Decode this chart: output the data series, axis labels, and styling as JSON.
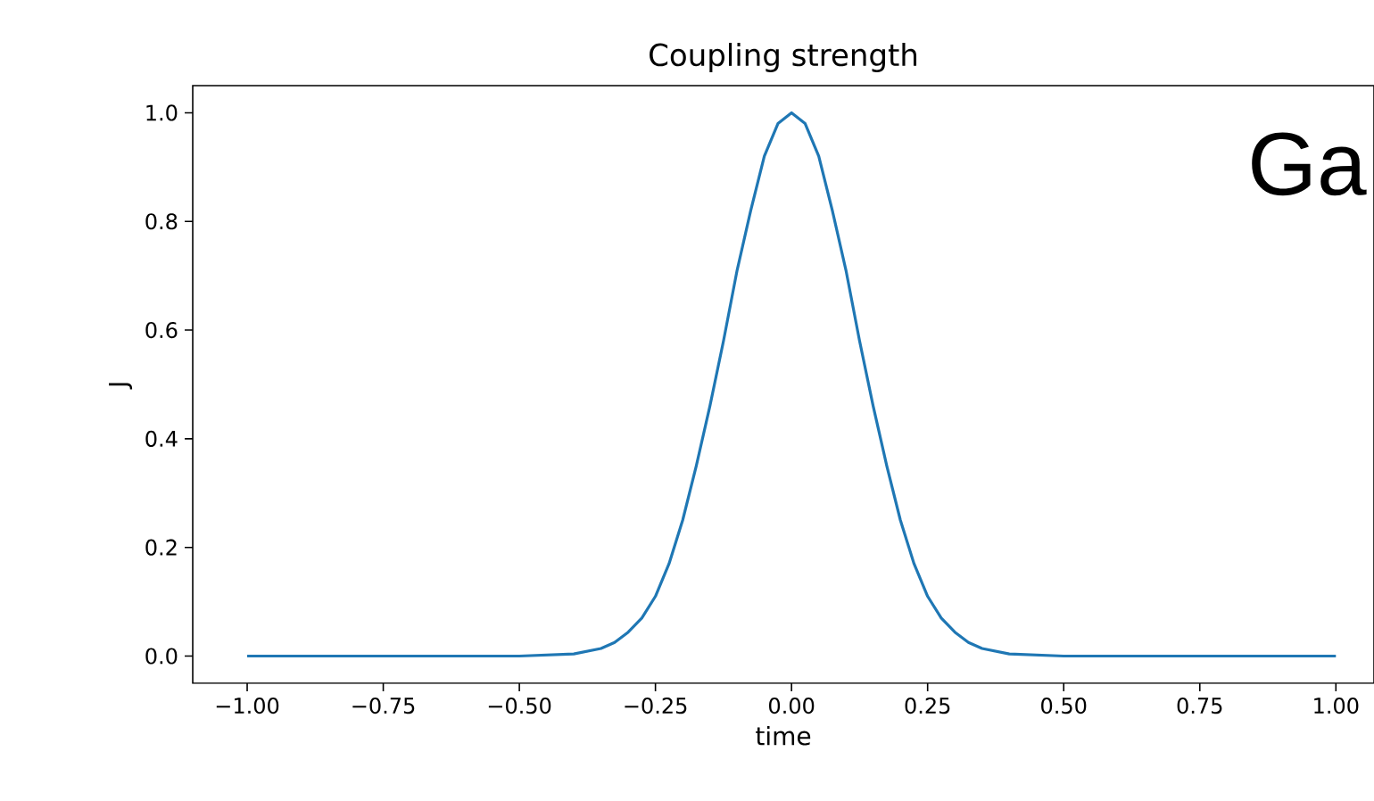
{
  "chart_data": {
    "type": "line",
    "title": "Coupling strength",
    "xlabel": "time",
    "ylabel": "J",
    "annotations": [
      "Ga"
    ],
    "x": [
      -1.0,
      -0.6,
      -0.5,
      -0.4,
      -0.35,
      -0.325,
      -0.3,
      -0.275,
      -0.25,
      -0.225,
      -0.2,
      -0.175,
      -0.15,
      -0.125,
      -0.1,
      -0.075,
      -0.05,
      -0.025,
      0.0,
      0.025,
      0.05,
      0.075,
      0.1,
      0.125,
      0.15,
      0.175,
      0.2,
      0.225,
      0.25,
      0.275,
      0.3,
      0.325,
      0.35,
      0.4,
      0.5,
      0.6,
      1.0
    ],
    "series": [
      {
        "color": "#1f77b4",
        "values": [
          0.0,
          0.0,
          0.0,
          0.004,
          0.014,
          0.025,
          0.044,
          0.07,
          0.11,
          0.17,
          0.25,
          0.35,
          0.46,
          0.58,
          0.71,
          0.82,
          0.92,
          0.98,
          1.0,
          0.98,
          0.92,
          0.82,
          0.71,
          0.58,
          0.46,
          0.35,
          0.25,
          0.17,
          0.11,
          0.07,
          0.044,
          0.025,
          0.014,
          0.004,
          0.0,
          0.0,
          0.0
        ]
      }
    ],
    "xlim": [
      -1.1,
      1.07
    ],
    "ylim": [
      -0.05,
      1.05
    ],
    "xticks": [
      {
        "value": -1.0,
        "label": "−1.00"
      },
      {
        "value": -0.75,
        "label": "−0.75"
      },
      {
        "value": -0.5,
        "label": "−0.50"
      },
      {
        "value": -0.25,
        "label": "−0.25"
      },
      {
        "value": 0.0,
        "label": "0.00"
      },
      {
        "value": 0.25,
        "label": "0.25"
      },
      {
        "value": 0.5,
        "label": "0.50"
      },
      {
        "value": 0.75,
        "label": "0.75"
      },
      {
        "value": 1.0,
        "label": "1.00"
      }
    ],
    "yticks": [
      {
        "value": 0.0,
        "label": "0.0"
      },
      {
        "value": 0.2,
        "label": "0.2"
      },
      {
        "value": 0.4,
        "label": "0.4"
      },
      {
        "value": 0.6,
        "label": "0.6"
      },
      {
        "value": 0.8,
        "label": "0.8"
      },
      {
        "value": 1.0,
        "label": "1.0"
      }
    ],
    "grid": false,
    "marker": "none",
    "line_style": "solid"
  }
}
